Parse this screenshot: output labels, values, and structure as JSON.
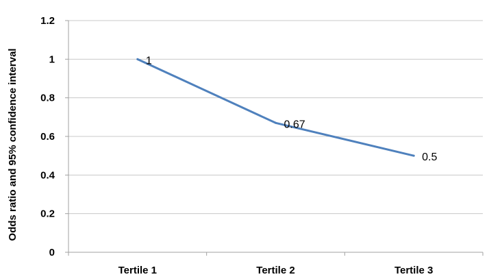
{
  "chart_data": {
    "type": "line",
    "title": "",
    "xlabel": "",
    "ylabel": "Odds ratio and 95% confidence interval",
    "categories": [
      "Tertile 1",
      "Tertile 2",
      "Tertile 3"
    ],
    "series": [
      {
        "values": [
          1,
          0.67,
          0.5
        ],
        "data_labels": [
          "1",
          "0.67",
          "0.5"
        ],
        "color": "#4f81bd"
      }
    ],
    "ylim": [
      0,
      1.2
    ],
    "yticks": [
      "0",
      "0.2",
      "0.4",
      "0.6",
      "0.8",
      "1",
      "1.2"
    ],
    "grid": "horizontal",
    "legend": "none"
  }
}
